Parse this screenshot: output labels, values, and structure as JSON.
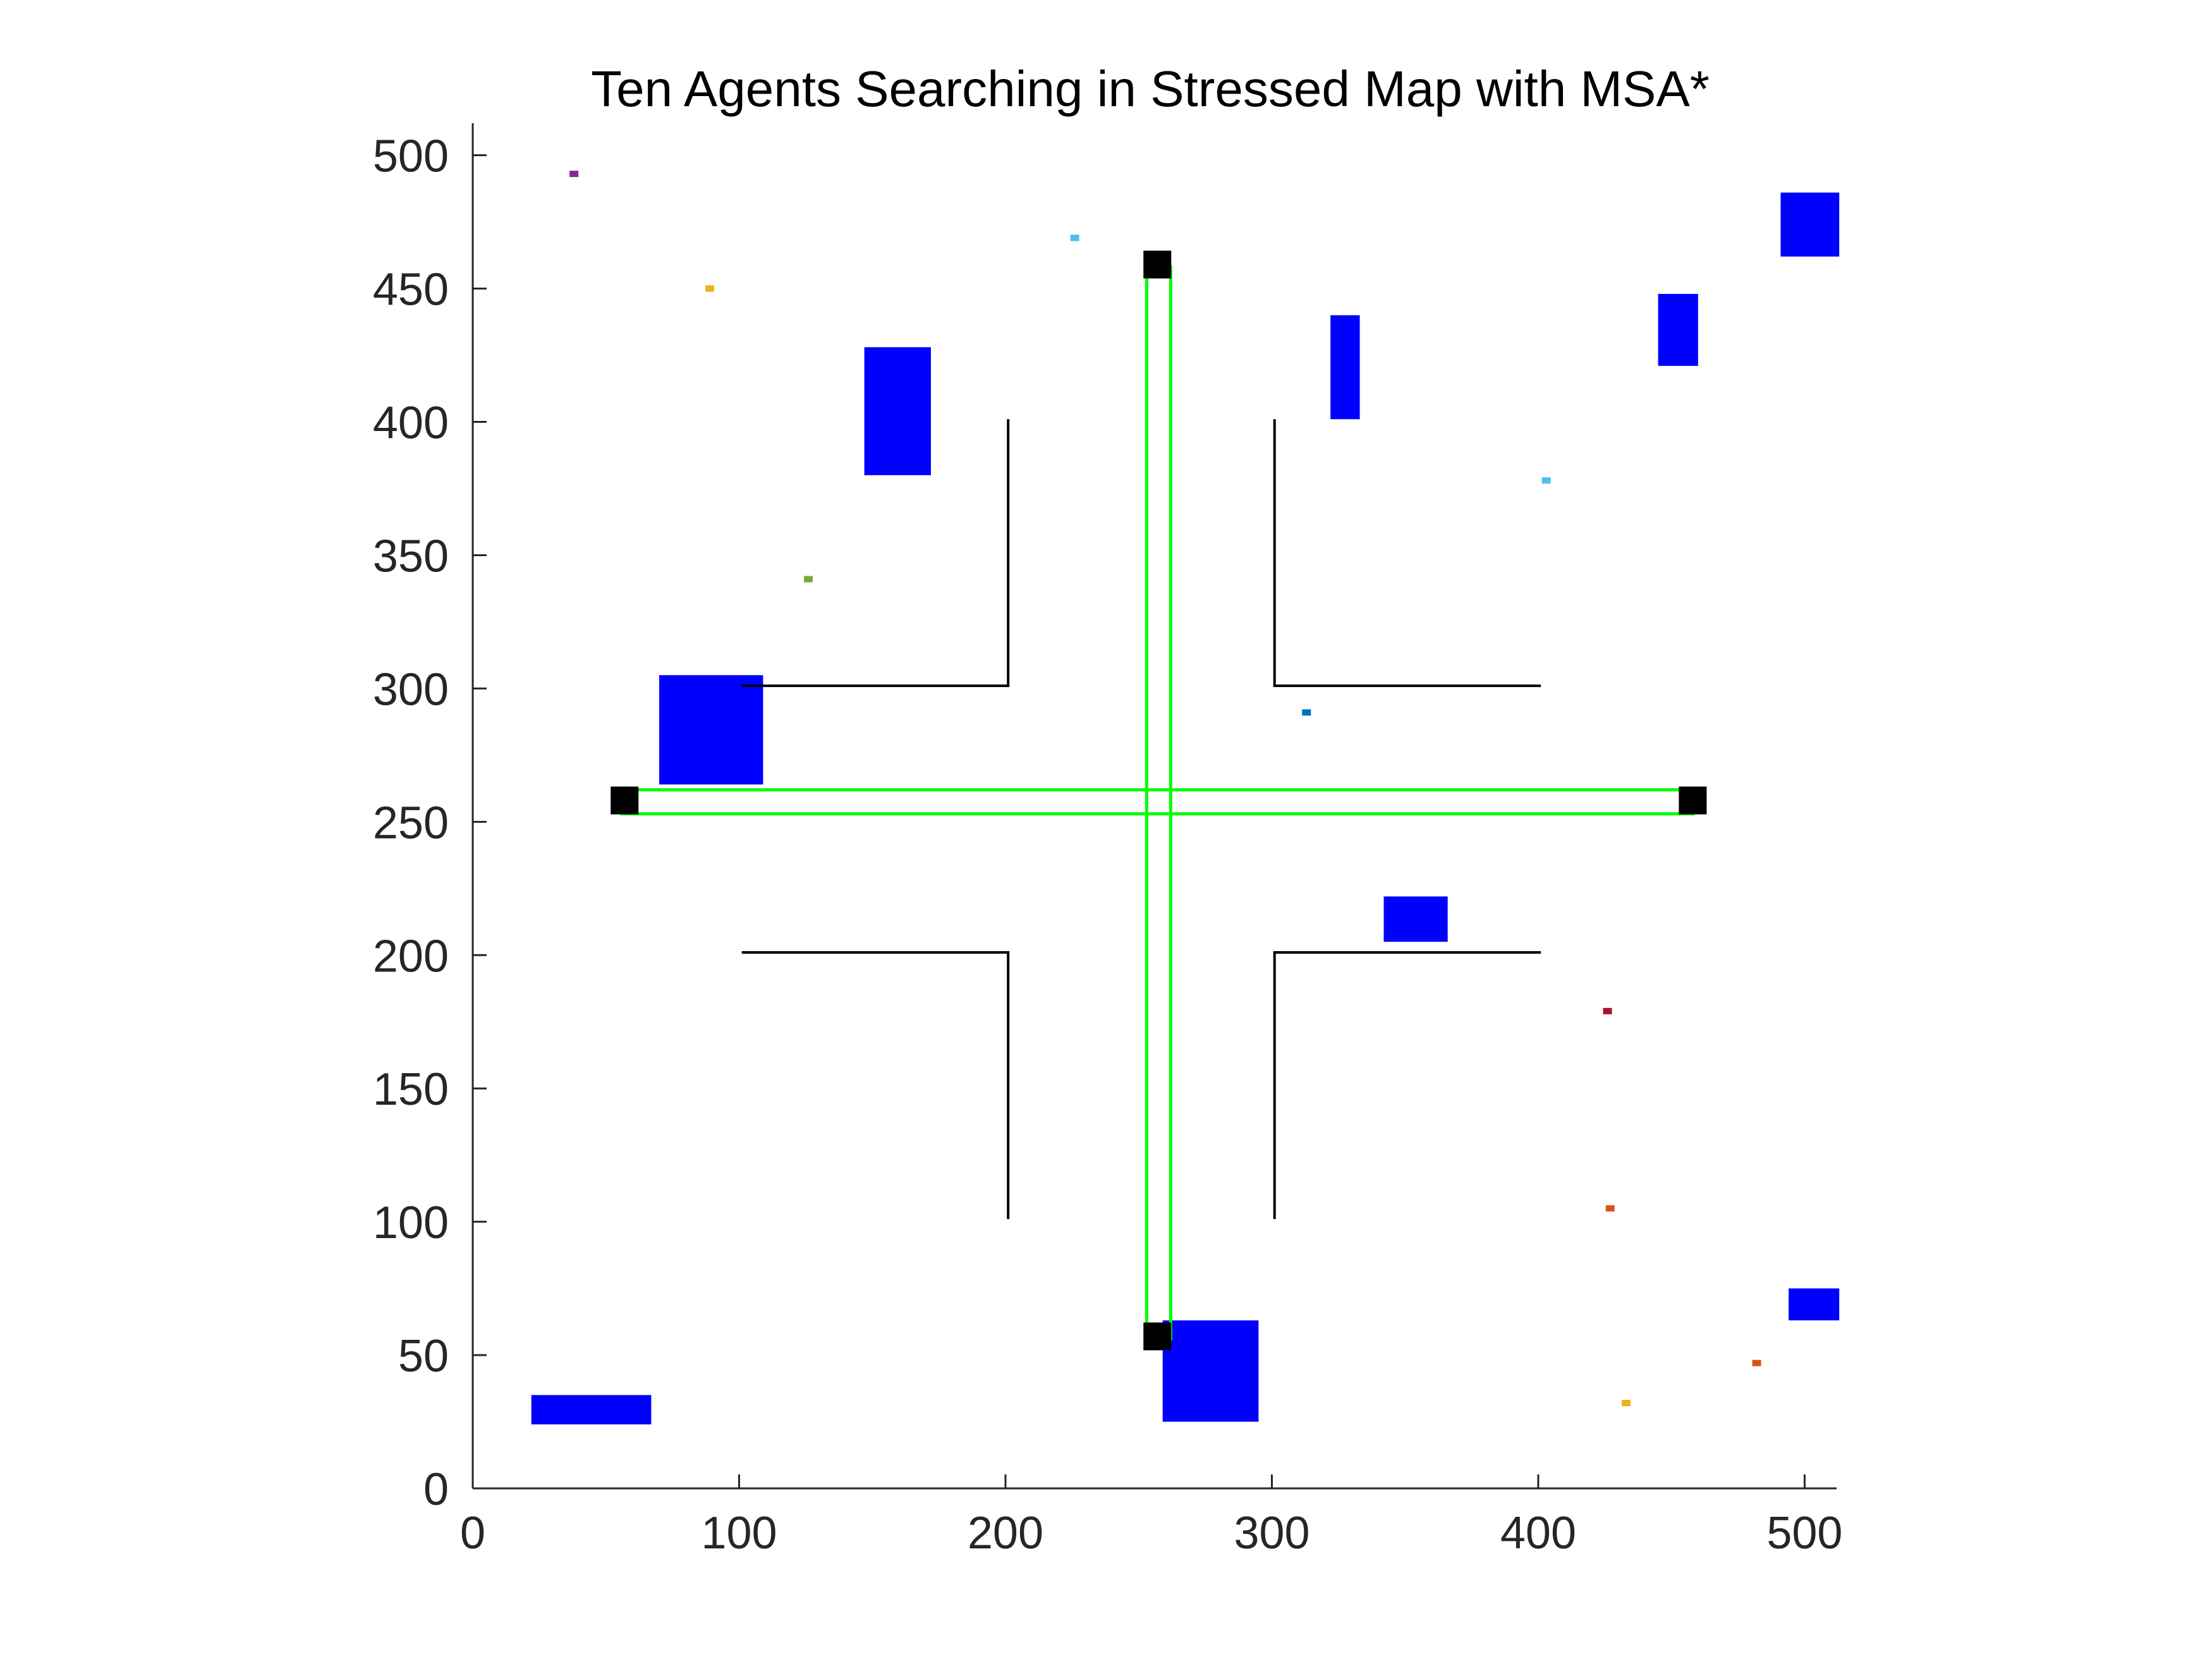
{
  "chart_data": {
    "type": "scatter",
    "title": "Ten Agents Searching in Stressed Map with MSA*",
    "xlabel": "",
    "ylabel": "",
    "xlim": [
      0,
      512
    ],
    "ylim": [
      0,
      512
    ],
    "xticks": [
      0,
      100,
      200,
      300,
      400,
      500
    ],
    "yticks": [
      0,
      50,
      100,
      150,
      200,
      250,
      300,
      350,
      400,
      450,
      500
    ],
    "xtick_labels": [
      "0",
      "100",
      "200",
      "300",
      "400",
      "500"
    ],
    "ytick_labels": [
      "0",
      "50",
      "100",
      "150",
      "200",
      "250",
      "300",
      "350",
      "400",
      "450",
      "500"
    ],
    "grid": false,
    "walls": [
      {
        "x": [
          101,
          201,
          201
        ],
        "y": [
          301,
          301,
          401
        ]
      },
      {
        "x": [
          301,
          301,
          401
        ],
        "y": [
          401,
          301,
          301
        ]
      },
      {
        "x": [
          101,
          201,
          201
        ],
        "y": [
          201,
          201,
          101
        ]
      },
      {
        "x": [
          301,
          301,
          401
        ],
        "y": [
          101,
          201,
          201
        ]
      }
    ],
    "obstacles": [
      {
        "x0": 147,
        "x1": 172,
        "y0": 380,
        "y1": 428
      },
      {
        "x0": 322,
        "x1": 333,
        "y0": 401,
        "y1": 440
      },
      {
        "x0": 445,
        "x1": 460,
        "y0": 421,
        "y1": 448
      },
      {
        "x0": 491,
        "x1": 513,
        "y0": 462,
        "y1": 486
      },
      {
        "x0": 70,
        "x1": 109,
        "y0": 264,
        "y1": 305
      },
      {
        "x0": 342,
        "x1": 366,
        "y0": 205,
        "y1": 222
      },
      {
        "x0": 22,
        "x1": 67,
        "y0": 24,
        "y1": 35
      },
      {
        "x0": 259,
        "x1": 295,
        "y0": 25,
        "y1": 63
      },
      {
        "x0": 494,
        "x1": 513,
        "y0": 63,
        "y1": 75
      }
    ],
    "corridors": [
      {
        "x0": 56,
        "x1": 458,
        "y0": 253,
        "y1": 262
      },
      {
        "x0": 253,
        "x1": 262,
        "y0": 56,
        "y1": 458
      }
    ],
    "endpoints": [
      {
        "x": 257,
        "y": 459
      },
      {
        "x": 57,
        "y": 258
      },
      {
        "x": 458,
        "y": 258
      },
      {
        "x": 257,
        "y": 57
      }
    ],
    "agents": [
      {
        "x": 38,
        "y": 493,
        "color": "#7E2F8E"
      },
      {
        "x": 89,
        "y": 450,
        "color": "#EDB120"
      },
      {
        "x": 226,
        "y": 469,
        "color": "#4DBEEE"
      },
      {
        "x": 126,
        "y": 341,
        "color": "#77AC30"
      },
      {
        "x": 403,
        "y": 378,
        "color": "#4DBEEE"
      },
      {
        "x": 313,
        "y": 291,
        "color": "#0072BD"
      },
      {
        "x": 426,
        "y": 179,
        "color": "#A2142F"
      },
      {
        "x": 427,
        "y": 105,
        "color": "#D95319"
      },
      {
        "x": 482,
        "y": 47,
        "color": "#D95319"
      },
      {
        "x": 433,
        "y": 32,
        "color": "#EDB120"
      }
    ],
    "colors": {
      "obstacle": "#0000FF",
      "corridor": "#00FF00",
      "endpoint": "#000000",
      "wall": "#000000",
      "axis": "#262626"
    }
  }
}
